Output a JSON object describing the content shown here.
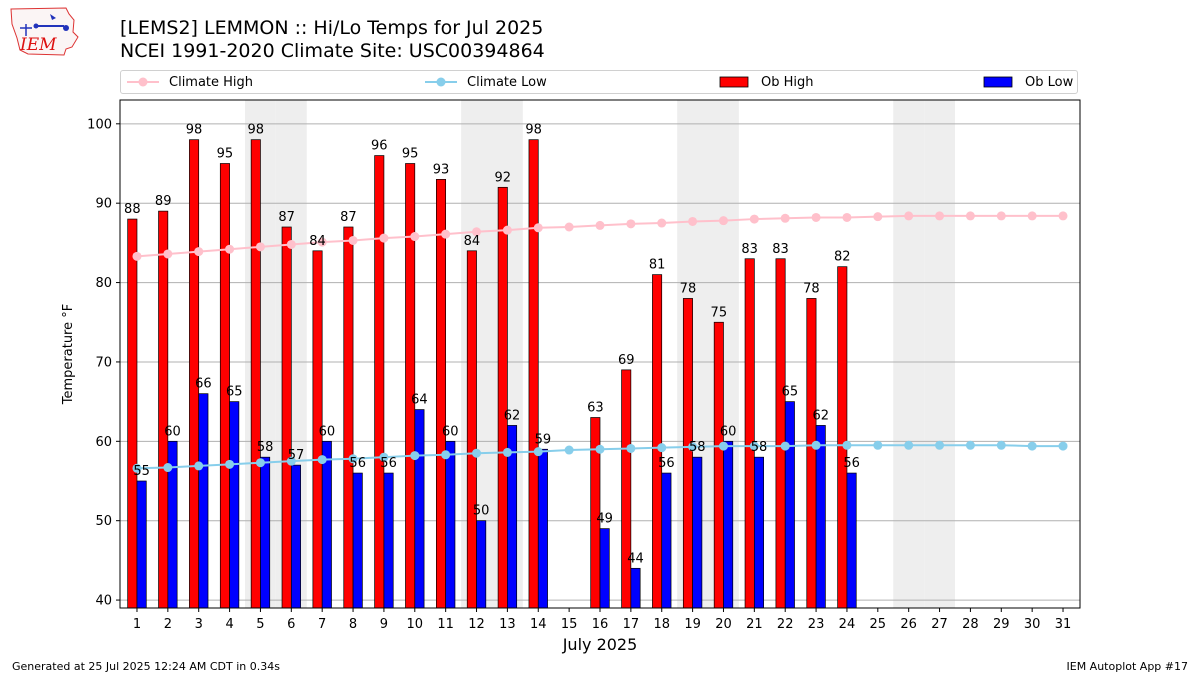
{
  "logo": {
    "text": "IEM"
  },
  "header": {
    "title_line1": "[LEMS2] LEMMON :: Hi/Lo Temps for Jul 2025",
    "title_line2": "NCEI 1991-2020 Climate Site: USC00394864"
  },
  "legend": {
    "climate_high": "Climate High",
    "climate_low": "Climate Low",
    "ob_high": "Ob High",
    "ob_low": "Ob Low"
  },
  "colors": {
    "ob_high": "#ff0000",
    "ob_low": "#0000ff",
    "climate_high": "#ffc0cb",
    "climate_low": "#87ceeb",
    "weekend_shade": "#eeeeee",
    "grid": "#b0b0b0"
  },
  "footer": {
    "generated": "Generated at 25 Jul 2025 12:24 AM CDT in 0.34s",
    "app": "IEM Autoplot App #17"
  },
  "chart_data": {
    "type": "bar",
    "xlabel": "July 2025",
    "ylabel": "Temperature °F",
    "ylim": [
      39,
      103
    ],
    "yticks": [
      40,
      50,
      60,
      70,
      80,
      90,
      100
    ],
    "grid": "horizontal",
    "legend_position": "top",
    "categories": [
      "1",
      "2",
      "3",
      "4",
      "5",
      "6",
      "7",
      "8",
      "9",
      "10",
      "11",
      "12",
      "13",
      "14",
      "15",
      "16",
      "17",
      "18",
      "19",
      "20",
      "21",
      "22",
      "23",
      "24",
      "25",
      "26",
      "27",
      "28",
      "29",
      "30",
      "31"
    ],
    "weekend_days": [
      5,
      6,
      12,
      13,
      19,
      20,
      26,
      27
    ],
    "series": [
      {
        "name": "Ob High",
        "kind": "bar",
        "values": [
          88,
          89,
          98,
          95,
          98,
          87,
          84,
          87,
          96,
          95,
          93,
          84,
          92,
          98,
          null,
          63,
          69,
          81,
          78,
          75,
          83,
          83,
          78,
          82,
          null,
          null,
          null,
          null,
          null,
          null,
          null
        ]
      },
      {
        "name": "Ob Low",
        "kind": "bar",
        "values": [
          55,
          60,
          66,
          65,
          58,
          57,
          60,
          56,
          56,
          64,
          60,
          50,
          62,
          59,
          null,
          49,
          44,
          56,
          58,
          60,
          58,
          65,
          62,
          56,
          null,
          null,
          null,
          null,
          null,
          null,
          null
        ]
      },
      {
        "name": "Climate High",
        "kind": "line",
        "values": [
          83.3,
          83.6,
          83.9,
          84.2,
          84.5,
          84.8,
          85.1,
          85.3,
          85.6,
          85.8,
          86.1,
          86.4,
          86.6,
          86.9,
          87.0,
          87.2,
          87.4,
          87.5,
          87.7,
          87.8,
          88.0,
          88.1,
          88.2,
          88.2,
          88.3,
          88.4,
          88.4,
          88.4,
          88.4,
          88.4,
          88.4
        ]
      },
      {
        "name": "Climate Low",
        "kind": "line",
        "values": [
          56.6,
          56.7,
          56.9,
          57.1,
          57.3,
          57.5,
          57.7,
          57.8,
          58.0,
          58.2,
          58.3,
          58.5,
          58.6,
          58.7,
          58.9,
          59.0,
          59.1,
          59.2,
          59.3,
          59.4,
          59.4,
          59.4,
          59.5,
          59.5,
          59.5,
          59.5,
          59.5,
          59.5,
          59.5,
          59.4,
          59.4
        ]
      }
    ]
  }
}
